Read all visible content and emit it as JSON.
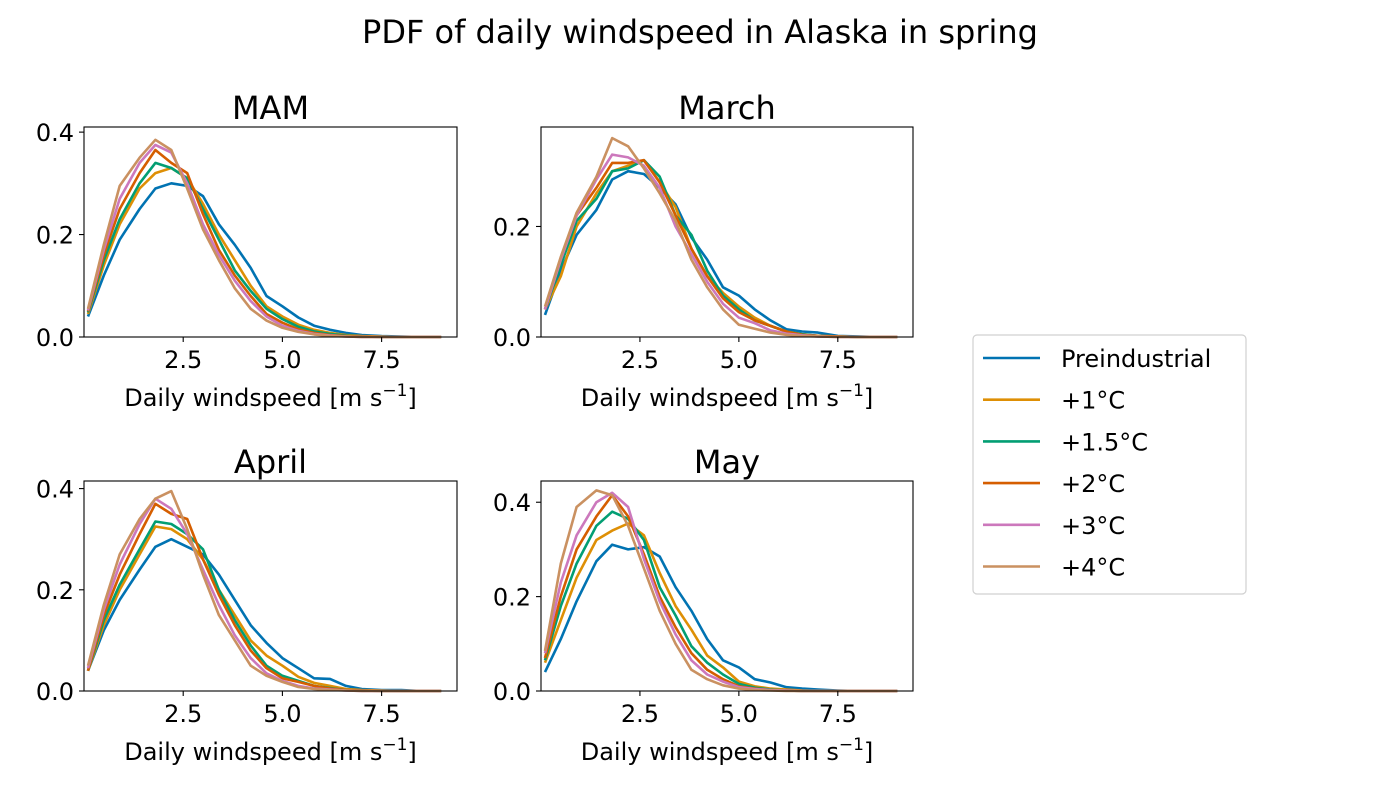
{
  "figure": {
    "suptitle": "PDF of daily windspeed in Alaska in spring"
  },
  "legend": {
    "placement": "right",
    "entries": [
      {
        "label": "Preindustrial",
        "color": "#0173b2"
      },
      {
        "label": "+1°C",
        "color": "#de8f05"
      },
      {
        "label": "+1.5°C",
        "color": "#029e73"
      },
      {
        "label": "+2°C",
        "color": "#d55e00"
      },
      {
        "label": "+3°C",
        "color": "#cc78bc"
      },
      {
        "label": "+4°C",
        "color": "#ca9161"
      }
    ]
  },
  "chart_data": [
    {
      "type": "line",
      "title": "MAM",
      "xlabel": "Daily windspeed [m s",
      "xlabel_sup": "−1",
      "xlabel_end": "]",
      "ylabel": "",
      "xlim": [
        0.0,
        9.4
      ],
      "ylim": [
        0.0,
        0.41
      ],
      "xticks": [
        "2.5",
        "5.0",
        "7.5"
      ],
      "yticks": [
        "0.0",
        "0.2",
        "0.4"
      ],
      "grid": false,
      "x": [
        0.1,
        0.5,
        0.9,
        1.4,
        1.8,
        2.2,
        2.6,
        3.0,
        3.4,
        3.8,
        4.2,
        4.6,
        5.0,
        5.4,
        5.8,
        6.2,
        6.6,
        7.0,
        7.5,
        8.0,
        8.5,
        9.0
      ],
      "series": [
        {
          "name": "Preindustrial",
          "values": [
            0.04,
            0.12,
            0.19,
            0.25,
            0.29,
            0.3,
            0.295,
            0.275,
            0.22,
            0.18,
            0.135,
            0.08,
            0.06,
            0.038,
            0.022,
            0.014,
            0.008,
            0.004,
            0.002,
            0.001,
            0.0,
            0.0
          ]
        },
        {
          "name": "+1°C",
          "values": [
            0.045,
            0.14,
            0.22,
            0.29,
            0.32,
            0.33,
            0.31,
            0.26,
            0.2,
            0.15,
            0.1,
            0.06,
            0.04,
            0.024,
            0.014,
            0.008,
            0.004,
            0.002,
            0.001,
            0.0,
            0.0,
            0.0
          ]
        },
        {
          "name": "+1.5°C",
          "values": [
            0.048,
            0.15,
            0.23,
            0.3,
            0.34,
            0.33,
            0.31,
            0.25,
            0.19,
            0.13,
            0.09,
            0.055,
            0.035,
            0.02,
            0.011,
            0.006,
            0.003,
            0.001,
            0.0,
            0.0,
            0.0,
            0.0
          ]
        },
        {
          "name": "+2°C",
          "values": [
            0.05,
            0.16,
            0.25,
            0.32,
            0.365,
            0.34,
            0.32,
            0.24,
            0.17,
            0.12,
            0.08,
            0.045,
            0.028,
            0.015,
            0.008,
            0.004,
            0.002,
            0.001,
            0.0,
            0.0,
            0.0,
            0.0
          ]
        },
        {
          "name": "+3°C",
          "values": [
            0.052,
            0.17,
            0.27,
            0.34,
            0.375,
            0.36,
            0.3,
            0.22,
            0.16,
            0.11,
            0.07,
            0.04,
            0.022,
            0.012,
            0.006,
            0.003,
            0.001,
            0.0,
            0.0,
            0.0,
            0.0,
            0.0
          ]
        },
        {
          "name": "+4°C",
          "values": [
            0.055,
            0.18,
            0.295,
            0.35,
            0.385,
            0.365,
            0.29,
            0.21,
            0.15,
            0.095,
            0.055,
            0.032,
            0.018,
            0.01,
            0.005,
            0.002,
            0.001,
            0.0,
            0.0,
            0.0,
            0.0,
            0.0
          ]
        }
      ]
    },
    {
      "type": "line",
      "title": "March",
      "xlabel": "Daily windspeed [m s",
      "xlabel_sup": "−1",
      "xlabel_end": "]",
      "ylabel": "",
      "xlim": [
        0.0,
        9.4
      ],
      "ylim": [
        0.0,
        0.38
      ],
      "xticks": [
        "2.5",
        "5.0",
        "7.5"
      ],
      "yticks": [
        "0.0",
        "0.2"
      ],
      "grid": false,
      "x": [
        0.1,
        0.5,
        0.9,
        1.4,
        1.8,
        2.2,
        2.6,
        3.0,
        3.4,
        3.8,
        4.2,
        4.6,
        5.0,
        5.4,
        5.8,
        6.2,
        6.6,
        7.0,
        7.5,
        8.0,
        8.5,
        9.0
      ],
      "series": [
        {
          "name": "Preindustrial",
          "values": [
            0.04,
            0.12,
            0.185,
            0.23,
            0.285,
            0.3,
            0.295,
            0.27,
            0.24,
            0.18,
            0.14,
            0.09,
            0.075,
            0.05,
            0.03,
            0.014,
            0.01,
            0.008,
            0.002,
            0.001,
            0.0,
            0.0
          ]
        },
        {
          "name": "+1°C",
          "values": [
            0.05,
            0.11,
            0.2,
            0.26,
            0.3,
            0.31,
            0.32,
            0.28,
            0.235,
            0.16,
            0.11,
            0.08,
            0.055,
            0.035,
            0.02,
            0.01,
            0.005,
            0.002,
            0.001,
            0.0,
            0.0,
            0.0
          ]
        },
        {
          "name": "+1.5°C",
          "values": [
            0.05,
            0.13,
            0.21,
            0.25,
            0.3,
            0.305,
            0.32,
            0.29,
            0.22,
            0.185,
            0.12,
            0.075,
            0.05,
            0.03,
            0.02,
            0.01,
            0.005,
            0.002,
            0.001,
            0.0,
            0.0,
            0.0
          ]
        },
        {
          "name": "+2°C",
          "values": [
            0.05,
            0.14,
            0.22,
            0.27,
            0.315,
            0.315,
            0.32,
            0.28,
            0.22,
            0.16,
            0.11,
            0.07,
            0.045,
            0.03,
            0.02,
            0.01,
            0.004,
            0.002,
            0.001,
            0.0,
            0.0,
            0.0
          ]
        },
        {
          "name": "+3°C",
          "values": [
            0.05,
            0.14,
            0.22,
            0.285,
            0.33,
            0.325,
            0.31,
            0.27,
            0.2,
            0.15,
            0.1,
            0.06,
            0.035,
            0.025,
            0.012,
            0.006,
            0.003,
            0.001,
            0.0,
            0.0,
            0.0,
            0.0
          ]
        },
        {
          "name": "+4°C",
          "values": [
            0.055,
            0.145,
            0.225,
            0.29,
            0.36,
            0.345,
            0.305,
            0.26,
            0.21,
            0.14,
            0.09,
            0.05,
            0.022,
            0.015,
            0.008,
            0.004,
            0.002,
            0.001,
            0.0,
            0.0,
            0.0,
            0.0
          ]
        }
      ]
    },
    {
      "type": "line",
      "title": "April",
      "xlabel": "Daily windspeed [m s",
      "xlabel_sup": "−1",
      "xlabel_end": "]",
      "ylabel": "",
      "xlim": [
        0.0,
        9.4
      ],
      "ylim": [
        0.0,
        0.415
      ],
      "xticks": [
        "2.5",
        "5.0",
        "7.5"
      ],
      "yticks": [
        "0.0",
        "0.2",
        "0.4"
      ],
      "grid": false,
      "x": [
        0.1,
        0.5,
        0.9,
        1.4,
        1.8,
        2.2,
        2.6,
        3.0,
        3.4,
        3.8,
        4.2,
        4.6,
        5.0,
        5.4,
        5.8,
        6.2,
        6.6,
        7.0,
        7.5,
        8.0,
        8.5,
        9.0
      ],
      "series": [
        {
          "name": "Preindustrial",
          "values": [
            0.04,
            0.12,
            0.18,
            0.24,
            0.285,
            0.3,
            0.285,
            0.27,
            0.23,
            0.18,
            0.13,
            0.095,
            0.065,
            0.045,
            0.025,
            0.024,
            0.01,
            0.004,
            0.002,
            0.002,
            0.0,
            0.0
          ]
        },
        {
          "name": "+1°C",
          "values": [
            0.04,
            0.13,
            0.2,
            0.27,
            0.325,
            0.32,
            0.3,
            0.26,
            0.2,
            0.15,
            0.1,
            0.07,
            0.05,
            0.028,
            0.016,
            0.01,
            0.004,
            0.002,
            0.001,
            0.0,
            0.0,
            0.0
          ]
        },
        {
          "name": "+1.5°C",
          "values": [
            0.04,
            0.14,
            0.21,
            0.28,
            0.335,
            0.33,
            0.31,
            0.28,
            0.2,
            0.14,
            0.09,
            0.05,
            0.03,
            0.02,
            0.01,
            0.006,
            0.002,
            0.001,
            0.0,
            0.0,
            0.0,
            0.0
          ]
        },
        {
          "name": "+2°C",
          "values": [
            0.04,
            0.15,
            0.23,
            0.31,
            0.37,
            0.35,
            0.34,
            0.26,
            0.19,
            0.13,
            0.08,
            0.045,
            0.025,
            0.018,
            0.01,
            0.005,
            0.002,
            0.001,
            0.0,
            0.0,
            0.0,
            0.0
          ]
        },
        {
          "name": "+3°C",
          "values": [
            0.045,
            0.16,
            0.25,
            0.33,
            0.38,
            0.36,
            0.31,
            0.24,
            0.17,
            0.11,
            0.065,
            0.035,
            0.02,
            0.01,
            0.005,
            0.003,
            0.001,
            0.0,
            0.0,
            0.0,
            0.0,
            0.0
          ]
        },
        {
          "name": "+4°C",
          "values": [
            0.05,
            0.17,
            0.27,
            0.34,
            0.38,
            0.395,
            0.32,
            0.23,
            0.15,
            0.1,
            0.05,
            0.03,
            0.018,
            0.008,
            0.004,
            0.002,
            0.001,
            0.0,
            0.0,
            0.0,
            0.0,
            0.0
          ]
        }
      ]
    },
    {
      "type": "line",
      "title": "May",
      "xlabel": "Daily windspeed [m s",
      "xlabel_sup": "−1",
      "xlabel_end": "]",
      "ylabel": "",
      "xlim": [
        0.0,
        9.4
      ],
      "ylim": [
        0.0,
        0.445
      ],
      "xticks": [
        "2.5",
        "5.0",
        "7.5"
      ],
      "yticks": [
        "0.0",
        "0.2",
        "0.4"
      ],
      "grid": false,
      "x": [
        0.1,
        0.5,
        0.9,
        1.4,
        1.8,
        2.2,
        2.6,
        3.0,
        3.4,
        3.8,
        4.2,
        4.6,
        5.0,
        5.4,
        5.8,
        6.2,
        6.6,
        7.0,
        7.5,
        8.0,
        8.5,
        9.0
      ],
      "series": [
        {
          "name": "Preindustrial",
          "values": [
            0.04,
            0.11,
            0.19,
            0.275,
            0.31,
            0.3,
            0.305,
            0.285,
            0.22,
            0.17,
            0.11,
            0.065,
            0.05,
            0.025,
            0.018,
            0.008,
            0.005,
            0.003,
            0.001,
            0.0,
            0.0,
            0.0
          ]
        },
        {
          "name": "+1°C",
          "values": [
            0.06,
            0.15,
            0.24,
            0.32,
            0.34,
            0.355,
            0.33,
            0.25,
            0.18,
            0.13,
            0.075,
            0.05,
            0.02,
            0.01,
            0.005,
            0.003,
            0.001,
            0.0,
            0.0,
            0.0,
            0.0,
            0.0
          ]
        },
        {
          "name": "+1.5°C",
          "values": [
            0.065,
            0.18,
            0.27,
            0.35,
            0.38,
            0.365,
            0.32,
            0.22,
            0.16,
            0.095,
            0.06,
            0.035,
            0.015,
            0.007,
            0.003,
            0.001,
            0.0,
            0.0,
            0.0,
            0.0,
            0.0,
            0.0
          ]
        },
        {
          "name": "+2°C",
          "values": [
            0.07,
            0.2,
            0.3,
            0.37,
            0.415,
            0.37,
            0.29,
            0.2,
            0.135,
            0.08,
            0.045,
            0.025,
            0.01,
            0.005,
            0.002,
            0.001,
            0.0,
            0.0,
            0.0,
            0.0,
            0.0,
            0.0
          ]
        },
        {
          "name": "+3°C",
          "values": [
            0.08,
            0.23,
            0.33,
            0.4,
            0.42,
            0.39,
            0.28,
            0.19,
            0.12,
            0.065,
            0.035,
            0.02,
            0.008,
            0.004,
            0.002,
            0.001,
            0.0,
            0.0,
            0.0,
            0.0,
            0.0,
            0.0
          ]
        },
        {
          "name": "+4°C",
          "values": [
            0.085,
            0.27,
            0.39,
            0.425,
            0.415,
            0.35,
            0.26,
            0.17,
            0.1,
            0.045,
            0.025,
            0.012,
            0.005,
            0.002,
            0.001,
            0.0,
            0.0,
            0.0,
            0.0,
            0.0,
            0.0,
            0.0
          ]
        }
      ]
    }
  ]
}
